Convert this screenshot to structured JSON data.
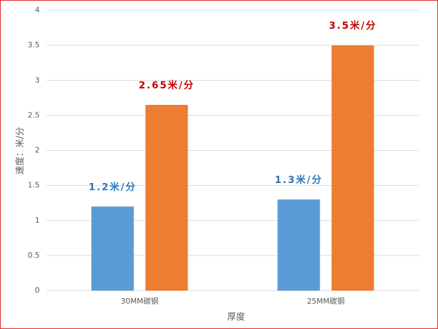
{
  "chart_data": {
    "type": "bar",
    "x_label": "厚度",
    "y_label": "速度：米/分",
    "categories": [
      "30MM碳钢",
      "25MM碳钢"
    ],
    "series": [
      {
        "color": "#5b9bd5",
        "label_color": "#2e75b6",
        "values": [
          1.2,
          1.3
        ],
        "value_labels": [
          "1.2米/分",
          "1.3米/分"
        ]
      },
      {
        "color": "#ed7d31",
        "label_color": "#c00000",
        "values": [
          2.65,
          3.5
        ],
        "value_labels": [
          "2.65米/分",
          "3.5米/分"
        ]
      }
    ],
    "ylim": [
      0,
      4
    ],
    "yticks": [
      0,
      0.5,
      1,
      1.5,
      2,
      2.5,
      3,
      3.5,
      4
    ],
    "grid": true
  }
}
